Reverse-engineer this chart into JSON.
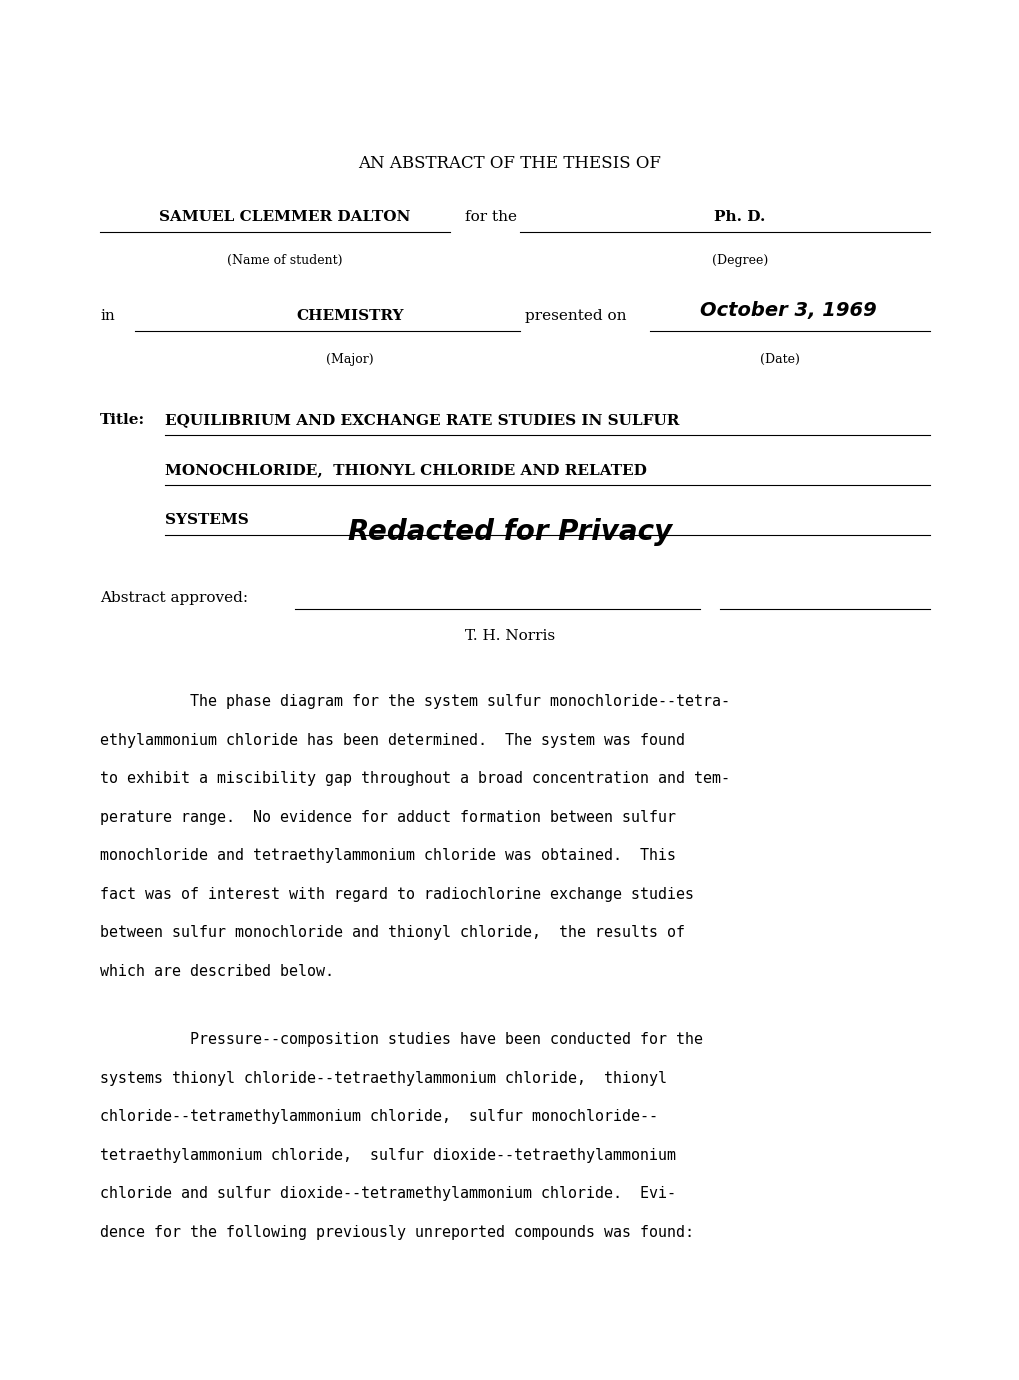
{
  "bg_color": "#ffffff",
  "page_width": 10.2,
  "page_height": 13.8,
  "header": "AN ABSTRACT OF THE THESIS OF",
  "student_name": "SAMUEL CLEMMER DALTON",
  "for_the": "for the",
  "degree": "Ph. D.",
  "name_label": "(Name of student)",
  "degree_label": "(Degree)",
  "in_word": "in",
  "major": "CHEMISTRY",
  "presented_on": "presented on",
  "date_handwritten": "October 3, 1969",
  "date_label": "(Date)",
  "major_label": "(Major)",
  "title_label": "Title:",
  "title_line1": "EQUILIBRIUM AND EXCHANGE RATE STUDIES IN SULFUR",
  "title_line2": "MONOCHLORIDE,  THIONYL CHLORIDE AND RELATED",
  "title_line3": "SYSTEMS",
  "redacted": "Redacted for Privacy",
  "approved_label": "Abstract approved:",
  "advisor": "T. H. Norris",
  "para1_lines": [
    "The phase diagram for the system sulfur monochloride--tetra-",
    "ethylammonium chloride has been determined.  The system was found",
    "to exhibit a miscibility gap throughout a broad concentration and tem-",
    "perature range.  No evidence for adduct formation between sulfur",
    "monochloride and tetraethylammonium chloride was obtained.  This",
    "fact was of interest with regard to radiochlorine exchange studies",
    "between sulfur monochloride and thionyl chloride,  the results of",
    "which are described below."
  ],
  "para2_lines": [
    "Pressure--composition studies have been conducted for the",
    "systems thionyl chloride--tetraethylammonium chloride,  thionyl",
    "chloride--tetramethylammonium chloride,  sulfur monochloride--",
    "tetraethylammonium chloride,  sulfur dioxide--tetraethylammonium",
    "chloride and sulfur dioxide--tetramethylammonium chloride.  Evi-",
    "dence for the following previously unreported compounds was found:"
  ]
}
